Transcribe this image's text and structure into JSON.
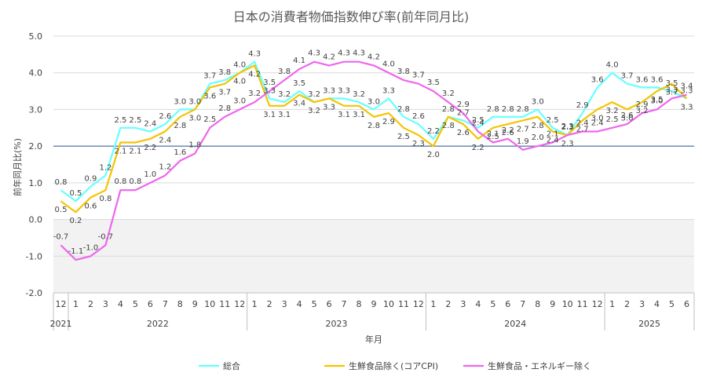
{
  "chart_data": {
    "type": "line",
    "title": "日本の消費者物価指数伸び率(前年同月比)",
    "xlabel": "年月",
    "ylabel": "前年同月比(%)",
    "ylim": [
      -2.0,
      5.0
    ],
    "yticks": [
      "5.0",
      "4.0",
      "3.0",
      "2.0",
      "1.0",
      "0.0",
      "-1.0",
      "-2.0"
    ],
    "reference_line": 2.0,
    "grid": true,
    "legend_position": "bottom",
    "months": [
      "12",
      "1",
      "2",
      "3",
      "4",
      "5",
      "6",
      "7",
      "8",
      "9",
      "10",
      "11",
      "12",
      "1",
      "2",
      "3",
      "4",
      "5",
      "6",
      "7",
      "8",
      "9",
      "10",
      "11",
      "12",
      "1",
      "2",
      "3",
      "4",
      "5",
      "6",
      "7",
      "8",
      "9",
      "10",
      "11",
      "12",
      "1",
      "2",
      "3",
      "4",
      "5",
      "6"
    ],
    "years": [
      {
        "label": "2021",
        "start": 0,
        "count": 1
      },
      {
        "label": "2022",
        "start": 1,
        "count": 12
      },
      {
        "label": "2023",
        "start": 13,
        "count": 12
      },
      {
        "label": "2024",
        "start": 25,
        "count": 12
      },
      {
        "label": "2025",
        "start": 37,
        "count": 6
      }
    ],
    "series": [
      {
        "name": "総合",
        "color": "#66FFFF",
        "values": [
          0.8,
          0.5,
          0.9,
          1.2,
          2.5,
          2.5,
          2.4,
          2.6,
          3.0,
          3.0,
          3.7,
          3.8,
          4.0,
          4.3,
          3.3,
          3.2,
          3.5,
          3.2,
          3.3,
          3.3,
          3.2,
          3.0,
          3.3,
          2.8,
          2.6,
          2.2,
          2.8,
          2.7,
          2.5,
          2.8,
          2.8,
          2.8,
          3.0,
          2.5,
          2.3,
          2.9,
          3.6,
          4.0,
          3.7,
          3.6,
          3.6,
          3.5,
          3.3
        ]
      },
      {
        "name": "生鮮食品除く(コアCPI)",
        "color": "#F5C400",
        "values": [
          0.5,
          0.2,
          0.6,
          0.8,
          2.1,
          2.1,
          2.2,
          2.4,
          2.8,
          3.0,
          3.6,
          3.7,
          4.0,
          4.2,
          3.1,
          3.1,
          3.4,
          3.2,
          3.3,
          3.1,
          3.1,
          2.8,
          2.9,
          2.5,
          2.3,
          2.0,
          2.8,
          2.6,
          2.2,
          2.5,
          2.6,
          2.7,
          2.8,
          2.4,
          2.3,
          2.7,
          3.0,
          3.2,
          3.0,
          3.2,
          3.5,
          3.7,
          3.3
        ]
      },
      {
        "name": "生鮮食品・エネルギー除く",
        "color": "#EE66EE",
        "values": [
          -0.7,
          -1.1,
          -1.0,
          -0.7,
          0.8,
          0.8,
          1.0,
          1.2,
          1.6,
          1.8,
          2.5,
          2.8,
          3.0,
          3.2,
          3.5,
          3.8,
          4.1,
          4.3,
          4.2,
          4.3,
          4.3,
          4.2,
          4.0,
          3.8,
          3.7,
          3.5,
          3.2,
          2.9,
          2.4,
          2.1,
          2.2,
          1.9,
          2.0,
          2.1,
          2.3,
          2.4,
          2.4,
          2.5,
          2.6,
          2.9,
          3.0,
          3.3,
          3.4
        ]
      }
    ]
  }
}
